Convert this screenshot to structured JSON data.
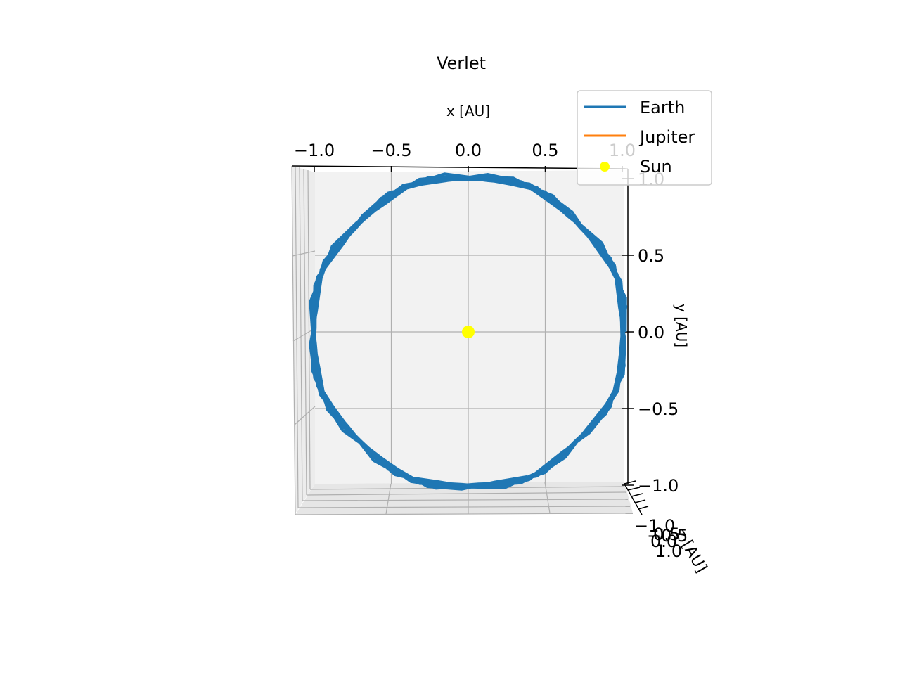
{
  "chart_data": {
    "type": "line",
    "projection": "3d",
    "view": "top-down (z axis pointing toward viewer)",
    "title": "Verlet",
    "xlabel": "x [AU]",
    "ylabel": "y [AU]",
    "zlabel": "z [AU]",
    "xlim": [
      -1.0,
      1.0
    ],
    "ylim": [
      -1.0,
      1.0
    ],
    "x_ticks": [
      "−1.0",
      "−0.5",
      "0.0",
      "0.5",
      "1.0"
    ],
    "y_ticks": [
      "1.0",
      "0.5",
      "0.0",
      "−0.5",
      "−1.0"
    ],
    "z_ticks": [
      "−1.0",
      "−0.5",
      "0.0",
      "0.5",
      "1.0"
    ],
    "grid": true,
    "legend_position": "top-right",
    "series": [
      {
        "name": "Earth",
        "kind": "line",
        "color": "#1f77b4",
        "description": "near-circular orbit of radius ~1.02 AU traced over several revolutions with coarse time steps (jagged polygon)",
        "radius": 1.02,
        "revolutions": 5
      },
      {
        "name": "Jupiter",
        "kind": "line",
        "color": "#ff7f0e",
        "points": []
      },
      {
        "name": "Sun",
        "kind": "marker",
        "color": "#ffff00",
        "x": 0.0,
        "y": 0.0
      }
    ]
  }
}
